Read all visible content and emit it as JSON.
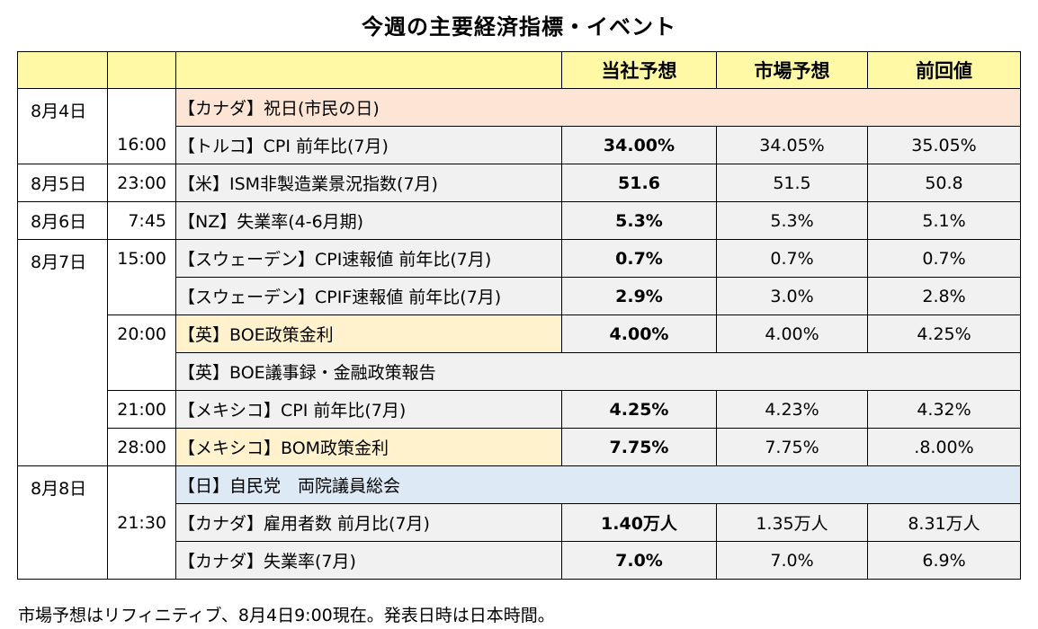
{
  "title": "今週の主要経済指標・イベント",
  "headers": {
    "forecast_company": "当社予想",
    "forecast_market": "市場予想",
    "previous": "前回値"
  },
  "dates": {
    "d4": "8月4日",
    "d5": "8月5日",
    "d6": "8月6日",
    "d7": "8月7日",
    "d8": "8月8日"
  },
  "rows": [
    {
      "time": "",
      "event": "【カナダ】祝日(市民の日)",
      "company": "",
      "market": "",
      "previous": ""
    },
    {
      "time": "16:00",
      "event": "【トルコ】CPI 前年比(7月)",
      "company": "34.00%",
      "market": "34.05%",
      "previous": "35.05%"
    },
    {
      "time": "23:00",
      "event": "【米】ISM非製造業景況指数(7月)",
      "company": "51.6",
      "market": "51.5",
      "previous": "50.8"
    },
    {
      "time": "7:45",
      "event": "【NZ】失業率(4-6月期)",
      "company": "5.3%",
      "market": "5.3%",
      "previous": "5.1%"
    },
    {
      "time": "15:00",
      "event": "【スウェーデン】CPI速報値 前年比(7月)",
      "company": "0.7%",
      "market": "0.7%",
      "previous": "0.7%"
    },
    {
      "time": "",
      "event": "【スウェーデン】CPIF速報値 前年比(7月)",
      "company": "2.9%",
      "market": "3.0%",
      "previous": "2.8%"
    },
    {
      "time": "20:00",
      "event": "【英】BOE政策金利",
      "company": "4.00%",
      "market": "4.00%",
      "previous": "4.25%"
    },
    {
      "time": "",
      "event": "【英】BOE議事録・金融政策報告",
      "company": "",
      "market": "",
      "previous": ""
    },
    {
      "time": "21:00",
      "event": "【メキシコ】CPI 前年比(7月)",
      "company": "4.25%",
      "market": "4.23%",
      "previous": "4.32%"
    },
    {
      "time": "28:00",
      "event": "【メキシコ】BOM政策金利",
      "company": "7.75%",
      "market": "7.75%",
      "previous": ".8.00%"
    },
    {
      "time": "",
      "event": "【日】自民党　両院議員総会",
      "company": "",
      "market": "",
      "previous": ""
    },
    {
      "time": "21:30",
      "event": "【カナダ】雇用者数 前月比(7月)",
      "company": "1.40万人",
      "market": "1.35万人",
      "previous": "8.31万人"
    },
    {
      "time": "",
      "event": "【カナダ】失業率(7月)",
      "company": "7.0%",
      "market": "7.0%",
      "previous": "6.9%"
    }
  ],
  "note": "市場予想はリフィニティブ、8月4日9:00現在。発表日時は日本時間。",
  "colors": {
    "header": "#fff9a6",
    "peach": "#fde5d6",
    "blue": "#dde9f5",
    "yellow": "#fff2cc",
    "gray": "#f1f1f1"
  }
}
